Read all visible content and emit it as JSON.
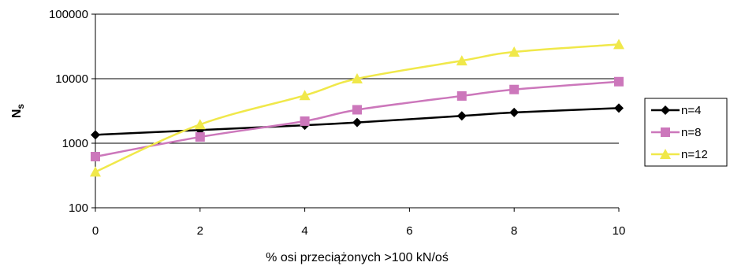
{
  "chart_data": {
    "type": "line",
    "xlabel": "% osi przeciążonych >100 kN/oś",
    "ylabel": "Ns",
    "ylabel_main": "N",
    "ylabel_sub": "s",
    "yscale": "log",
    "xlim": [
      0,
      10
    ],
    "ylim": [
      100,
      100000
    ],
    "x_ticks": [
      "0",
      "2",
      "4",
      "6",
      "8",
      "10"
    ],
    "y_ticks": [
      "100",
      "1000",
      "10000",
      "100000"
    ],
    "grid": "horizontal",
    "legend_position": "right",
    "series": [
      {
        "name": "n=4",
        "color": "#000000",
        "marker": "diamond",
        "x": [
          0,
          2,
          4,
          5,
          7,
          8,
          10
        ],
        "values": [
          1350,
          1600,
          1900,
          2100,
          2650,
          3000,
          3500
        ]
      },
      {
        "name": "n=8",
        "color": "#cc77bb",
        "marker": "square",
        "x": [
          0,
          2,
          4,
          5,
          7,
          8,
          10
        ],
        "values": [
          620,
          1250,
          2200,
          3300,
          5400,
          6800,
          9000
        ]
      },
      {
        "name": "n=12",
        "color": "#f0e84a",
        "marker": "triangle",
        "x": [
          0,
          2,
          4,
          5,
          7,
          8,
          10
        ],
        "values": [
          360,
          1950,
          5500,
          10000,
          19000,
          26000,
          34000
        ]
      }
    ]
  }
}
